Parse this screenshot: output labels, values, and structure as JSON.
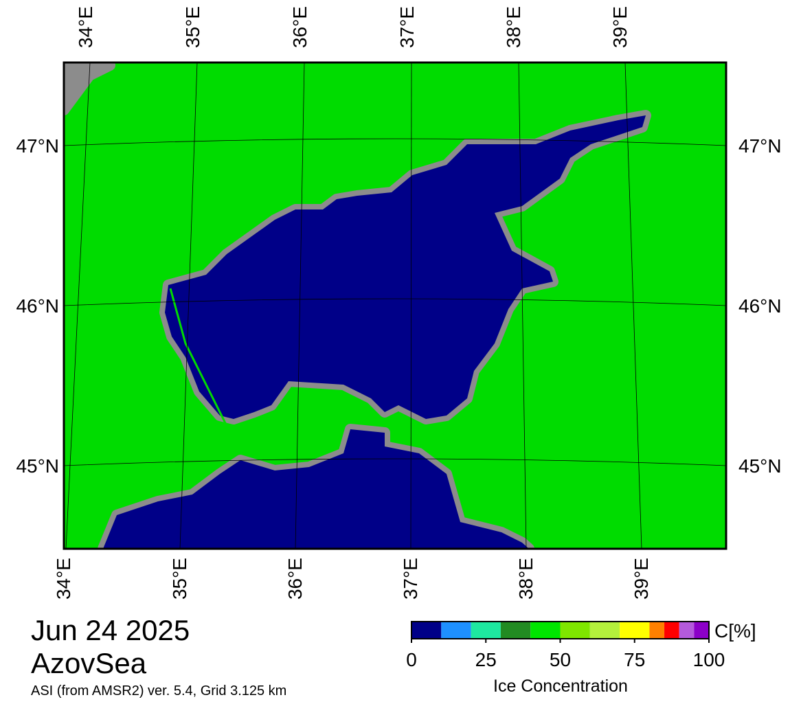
{
  "map": {
    "lon_labels": [
      "34°E",
      "35°E",
      "36°E",
      "37°E",
      "38°E",
      "39°E"
    ],
    "lat_labels": [
      "47°N",
      "46°N",
      "45°N"
    ]
  },
  "date": "Jun 24 2025",
  "region": "AzovSea",
  "source": "ASI (from AMSR2) ver. 5.4,  Grid 3.125 km",
  "colorbar": {
    "bins": [
      0,
      10,
      20,
      30,
      40,
      50,
      60,
      70,
      80,
      85,
      90,
      95,
      100
    ],
    "colors": [
      "#000088",
      "#1e90ff",
      "#1ee8a0",
      "#228b22",
      "#00e600",
      "#7fe600",
      "#b4f03c",
      "#ffff00",
      "#ff8000",
      "#ff0000",
      "#b45adc",
      "#8c00c8"
    ],
    "lim": [
      0,
      100
    ],
    "ticks": [
      0,
      25,
      50,
      75,
      100
    ],
    "unit": "C[%]",
    "label": "Ice Concentration"
  }
}
